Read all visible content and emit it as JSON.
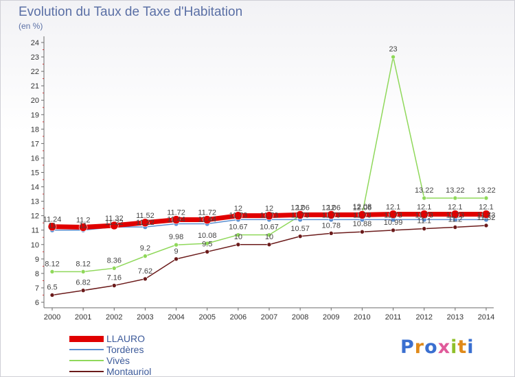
{
  "page": {
    "title": "Evolution du Taux de Taxe d'Habitation",
    "subtitle": "(en %)",
    "logo": "Proxiti"
  },
  "colors": {
    "LLAURO": "#e00000",
    "Tordères": "#5b8fd0",
    "Vivès": "#8fd85a",
    "Montauriol": "#6b1a1a"
  },
  "chart_data": {
    "type": "line",
    "title": "Evolution du Taux de Taxe d'Habitation",
    "subtitle": "(en %)",
    "categories": [
      "2000",
      "2001",
      "2002",
      "2003",
      "2004",
      "2005",
      "2006",
      "2007",
      "2008",
      "2009",
      "2010",
      "2011",
      "2012",
      "2013",
      "2014"
    ],
    "ylim": [
      6,
      24
    ],
    "yticks": [
      6,
      7,
      8,
      9,
      10,
      11,
      12,
      13,
      14,
      15,
      16,
      17,
      18,
      19,
      20,
      21,
      22,
      23,
      24
    ],
    "grid": false,
    "legend_position": "bottom-left",
    "series": [
      {
        "name": "LLAURO",
        "values": [
          11.24,
          11.2,
          11.32,
          11.52,
          11.72,
          11.72,
          12,
          12,
          12.06,
          12.06,
          12.06,
          12.1,
          12.1,
          12.1,
          12.1
        ]
      },
      {
        "name": "Tordères",
        "values": [
          11,
          11,
          11.22,
          11.22,
          11.44,
          11.44,
          11.73,
          11.73,
          11.73,
          11.73,
          11.73,
          11.73,
          11.73,
          11.73,
          11.73
        ]
      },
      {
        "name": "Vivès",
        "values": [
          8.12,
          8.12,
          8.36,
          9.2,
          9.98,
          10.08,
          10.67,
          10.67,
          12,
          12,
          12.08,
          23,
          13.22,
          13.22,
          13.22
        ]
      },
      {
        "name": "Montauriol",
        "values": [
          6.5,
          6.82,
          7.16,
          7.62,
          9,
          9.5,
          10,
          10,
          10.57,
          10.78,
          10.88,
          10.99,
          11.1,
          11.2,
          11.32
        ]
      }
    ]
  }
}
